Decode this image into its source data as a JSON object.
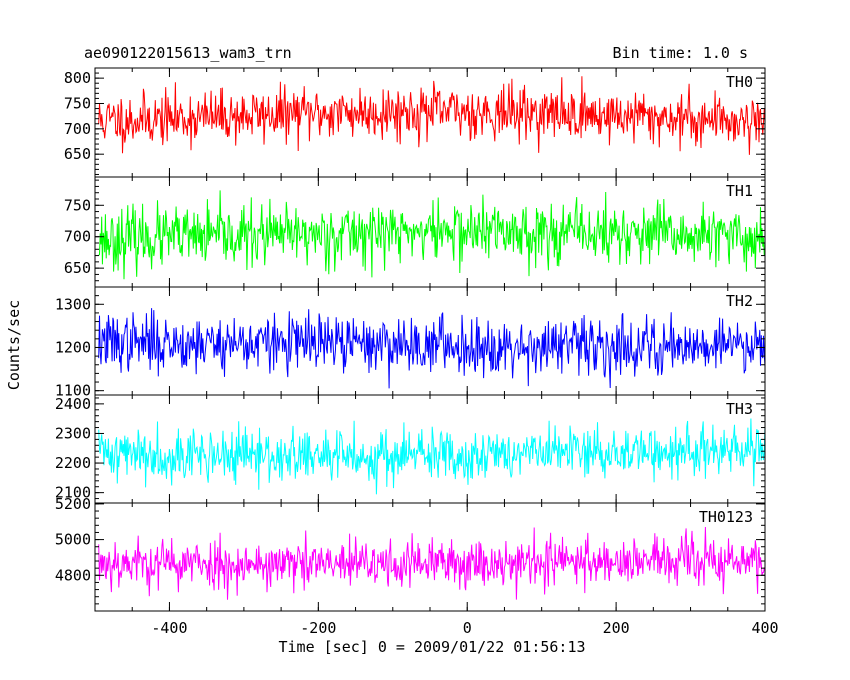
{
  "header": {
    "title": "ae090122015613_wam3_trn",
    "bin_time": "Bin time: 1.0 s"
  },
  "chart_data": {
    "type": "line",
    "xlabel": "Time [sec] 0 = 2009/01/22 01:56:13",
    "ylabel": "Counts/sec",
    "xlim": [
      -500,
      400
    ],
    "x_ticks": [
      -400,
      -200,
      0,
      200,
      400
    ],
    "x_step": 1,
    "panels": [
      {
        "name": "TH0",
        "color": "#ff0000",
        "ylim": [
          605,
          820
        ],
        "y_ticks": [
          650,
          700,
          750,
          800
        ],
        "mean": 720,
        "trend": 10,
        "noise": 26,
        "seed": 11
      },
      {
        "name": "TH1",
        "color": "#00ff00",
        "ylim": [
          620,
          795
        ],
        "y_ticks": [
          650,
          700,
          750
        ],
        "mean": 700,
        "trend": 5,
        "noise": 24,
        "seed": 23
      },
      {
        "name": "TH2",
        "color": "#0000ff",
        "ylim": [
          1090,
          1340
        ],
        "y_ticks": [
          1100,
          1200,
          1300
        ],
        "mean": 1215,
        "trend": -12,
        "noise": 33,
        "seed": 37
      },
      {
        "name": "TH3",
        "color": "#00ffff",
        "ylim": [
          2065,
          2430
        ],
        "y_ticks": [
          2100,
          2200,
          2300,
          2400
        ],
        "mean": 2240,
        "trend": -15,
        "noise": 45,
        "seed": 41
      },
      {
        "name": "TH0123",
        "color": "#ff00ff",
        "ylim": [
          4600,
          5205
        ],
        "y_ticks": [
          4800,
          5000,
          5200
        ],
        "mean": 4870,
        "trend": 0,
        "noise": 70,
        "seed": 53
      }
    ]
  }
}
